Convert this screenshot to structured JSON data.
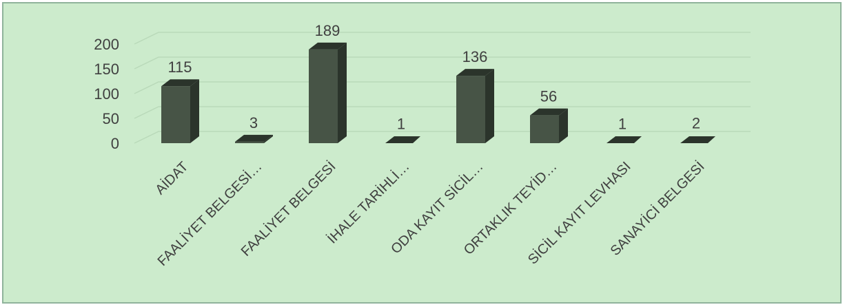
{
  "chart_data": {
    "type": "bar",
    "style": "3d-column",
    "title": "",
    "xlabel": "",
    "ylabel": "",
    "categories": [
      "AİDAT",
      "FAALİYET BELGESİ…",
      "FAALİYET BELGESİ",
      "İHALE TARİHLİ…",
      "ODA KAYIT SİCİL…",
      "ORTAKLIK TEYİD…",
      "SİCİL KAYIT LEVHASI",
      "SANAYİCİ BELGESİ"
    ],
    "values": [
      115,
      3,
      189,
      1,
      136,
      56,
      1,
      2
    ],
    "data_labels": [
      "115",
      "3",
      "189",
      "1",
      "136",
      "56",
      "1",
      "2"
    ],
    "ylim": [
      0,
      200
    ],
    "y_ticks": [
      "0",
      "50",
      "100",
      "150",
      "200"
    ],
    "grid": true,
    "legend": "none",
    "colors": {
      "background": "#ccebcc",
      "border": "#8fb39b",
      "bar_front": "#475446",
      "bar_side": "#2b342b",
      "bar_top": "#5b685a",
      "gridline": "#b9d9b9",
      "text": "#404040"
    }
  }
}
